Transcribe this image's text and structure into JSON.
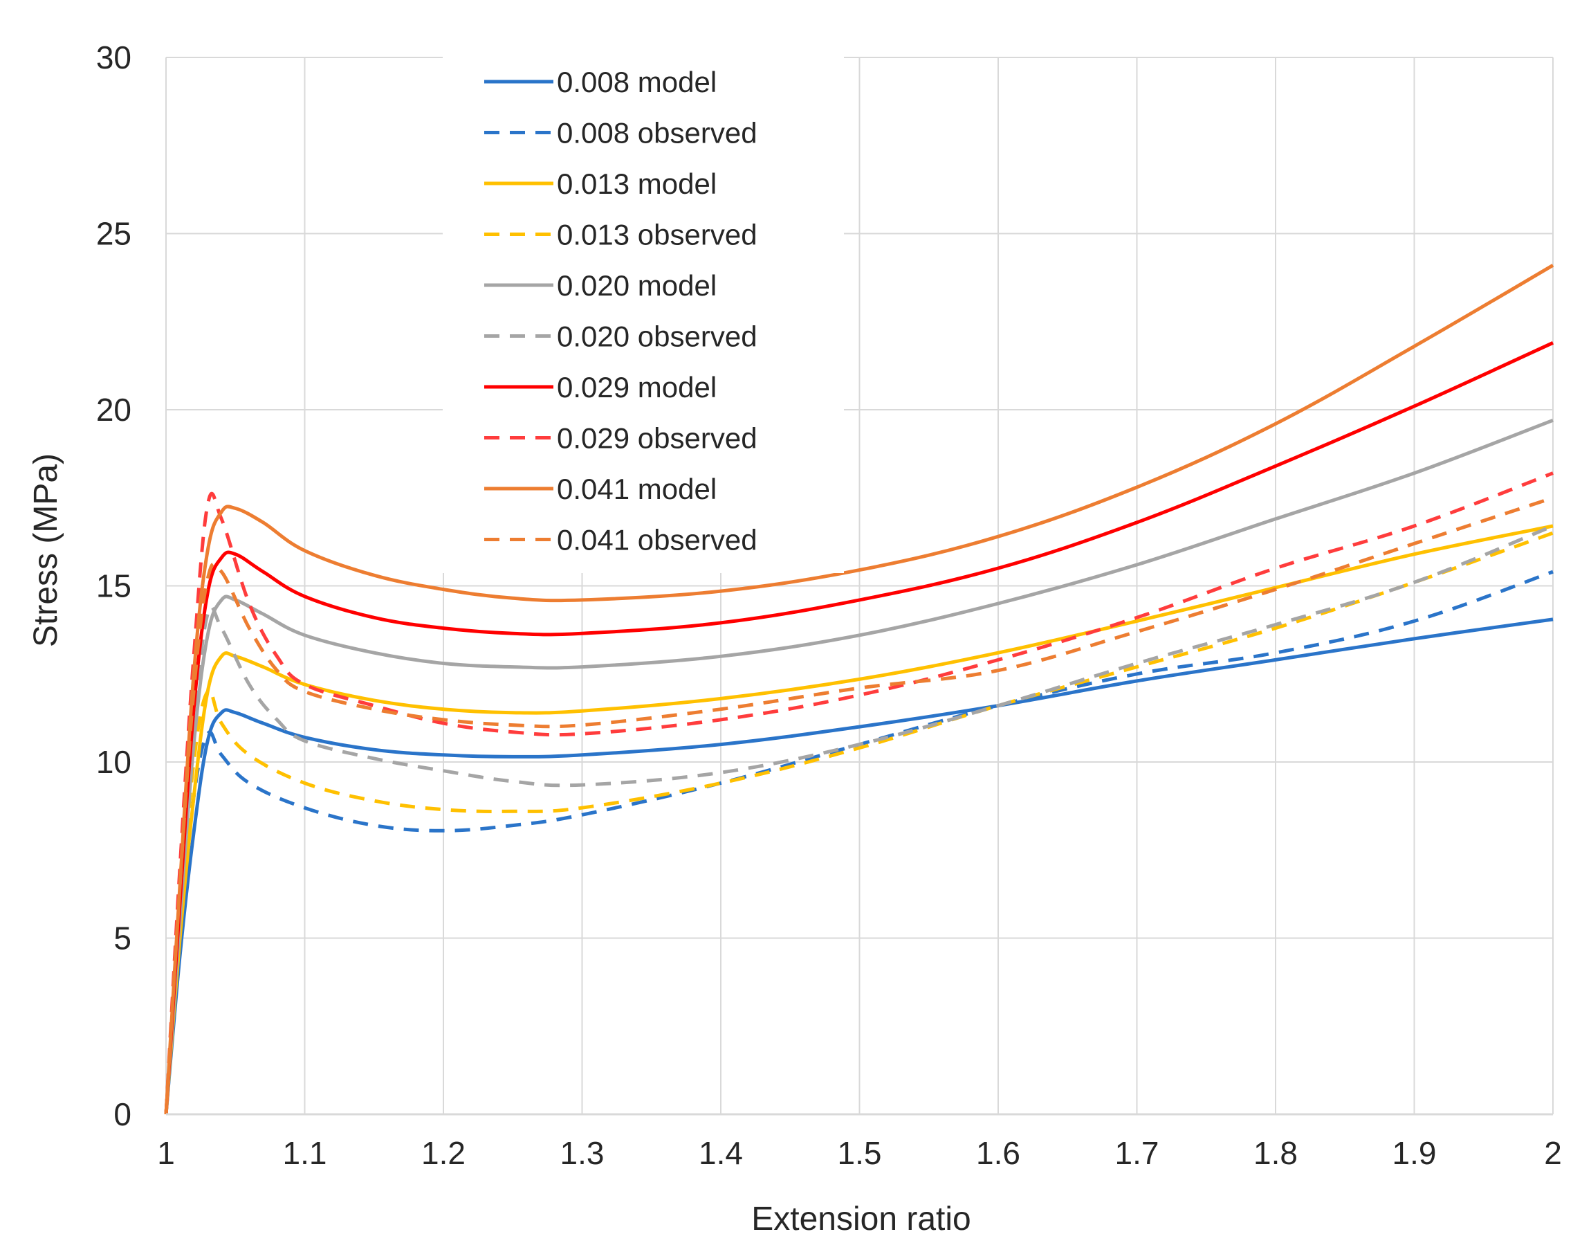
{
  "chart_data": {
    "type": "line",
    "title": "",
    "xlabel": "Extension ratio",
    "ylabel": "Stress (MPa)",
    "xlim": [
      1,
      2
    ],
    "ylim": [
      0,
      30
    ],
    "x_ticks": [
      1,
      1.1,
      1.2,
      1.3,
      1.4,
      1.5,
      1.6,
      1.7,
      1.8,
      1.9,
      2
    ],
    "x_tick_labels": [
      "1",
      "1.1",
      "1.2",
      "1.3",
      "1.4",
      "1.5",
      "1.6",
      "1.7",
      "1.8",
      "1.9",
      "2"
    ],
    "y_ticks": [
      0,
      5,
      10,
      15,
      20,
      25,
      30
    ],
    "y_tick_labels": [
      "0",
      "5",
      "10",
      "15",
      "20",
      "25",
      "30"
    ],
    "grid": true,
    "legend_position": "top-center",
    "series": [
      {
        "name": "0.008 model",
        "color": "#2a74c9",
        "dash": "solid",
        "points": [
          [
            1,
            0
          ],
          [
            1.01,
            4.5
          ],
          [
            1.02,
            8
          ],
          [
            1.03,
            10.6
          ],
          [
            1.04,
            11.4
          ],
          [
            1.05,
            11.4
          ],
          [
            1.07,
            11.1
          ],
          [
            1.1,
            10.7
          ],
          [
            1.15,
            10.35
          ],
          [
            1.2,
            10.2
          ],
          [
            1.25,
            10.15
          ],
          [
            1.3,
            10.2
          ],
          [
            1.4,
            10.5
          ],
          [
            1.5,
            11
          ],
          [
            1.6,
            11.6
          ],
          [
            1.7,
            12.3
          ],
          [
            1.8,
            12.9
          ],
          [
            1.9,
            13.5
          ],
          [
            2,
            14.05
          ]
        ]
      },
      {
        "name": "0.008 observed",
        "color": "#2a74c9",
        "dash": "dashed",
        "points": [
          [
            1,
            0
          ],
          [
            1.01,
            5
          ],
          [
            1.02,
            9
          ],
          [
            1.03,
            10.8
          ],
          [
            1.04,
            10.2
          ],
          [
            1.06,
            9.4
          ],
          [
            1.1,
            8.7
          ],
          [
            1.15,
            8.2
          ],
          [
            1.2,
            8.05
          ],
          [
            1.25,
            8.2
          ],
          [
            1.3,
            8.5
          ],
          [
            1.4,
            9.4
          ],
          [
            1.5,
            10.5
          ],
          [
            1.6,
            11.6
          ],
          [
            1.7,
            12.5
          ],
          [
            1.8,
            13.1
          ],
          [
            1.9,
            14
          ],
          [
            2,
            15.4
          ]
        ]
      },
      {
        "name": "0.013 model",
        "color": "#ffc000",
        "dash": "solid",
        "points": [
          [
            1,
            0
          ],
          [
            1.01,
            5
          ],
          [
            1.02,
            9
          ],
          [
            1.03,
            12
          ],
          [
            1.04,
            13
          ],
          [
            1.05,
            13
          ],
          [
            1.07,
            12.7
          ],
          [
            1.1,
            12.2
          ],
          [
            1.15,
            11.75
          ],
          [
            1.2,
            11.5
          ],
          [
            1.25,
            11.4
          ],
          [
            1.3,
            11.45
          ],
          [
            1.4,
            11.8
          ],
          [
            1.5,
            12.35
          ],
          [
            1.6,
            13.1
          ],
          [
            1.7,
            14
          ],
          [
            1.8,
            14.95
          ],
          [
            1.9,
            15.9
          ],
          [
            2,
            16.7
          ]
        ]
      },
      {
        "name": "0.013 observed",
        "color": "#ffc000",
        "dash": "dashed",
        "points": [
          [
            1,
            0
          ],
          [
            1.01,
            5.5
          ],
          [
            1.02,
            10
          ],
          [
            1.03,
            12
          ],
          [
            1.04,
            11.1
          ],
          [
            1.06,
            10.2
          ],
          [
            1.1,
            9.4
          ],
          [
            1.15,
            8.9
          ],
          [
            1.2,
            8.65
          ],
          [
            1.25,
            8.6
          ],
          [
            1.3,
            8.7
          ],
          [
            1.4,
            9.4
          ],
          [
            1.5,
            10.4
          ],
          [
            1.6,
            11.6
          ],
          [
            1.7,
            12.7
          ],
          [
            1.8,
            13.8
          ],
          [
            1.9,
            15.1
          ],
          [
            2,
            16.5
          ]
        ]
      },
      {
        "name": "0.020 model",
        "color": "#a5a5a5",
        "dash": "solid",
        "points": [
          [
            1,
            0
          ],
          [
            1.01,
            5.5
          ],
          [
            1.02,
            10.5
          ],
          [
            1.03,
            13.6
          ],
          [
            1.04,
            14.6
          ],
          [
            1.05,
            14.6
          ],
          [
            1.07,
            14.2
          ],
          [
            1.1,
            13.6
          ],
          [
            1.15,
            13.1
          ],
          [
            1.2,
            12.8
          ],
          [
            1.25,
            12.7
          ],
          [
            1.3,
            12.7
          ],
          [
            1.4,
            13
          ],
          [
            1.5,
            13.6
          ],
          [
            1.6,
            14.5
          ],
          [
            1.7,
            15.6
          ],
          [
            1.8,
            16.9
          ],
          [
            1.9,
            18.2
          ],
          [
            2,
            19.7
          ]
        ]
      },
      {
        "name": "0.020 observed",
        "color": "#a5a5a5",
        "dash": "dashed",
        "points": [
          [
            1,
            0
          ],
          [
            1.01,
            6
          ],
          [
            1.02,
            11
          ],
          [
            1.03,
            14.2
          ],
          [
            1.04,
            13.8
          ],
          [
            1.06,
            12.2
          ],
          [
            1.08,
            11.2
          ],
          [
            1.1,
            10.6
          ],
          [
            1.15,
            10.1
          ],
          [
            1.2,
            9.75
          ],
          [
            1.25,
            9.45
          ],
          [
            1.3,
            9.35
          ],
          [
            1.4,
            9.7
          ],
          [
            1.5,
            10.5
          ],
          [
            1.6,
            11.6
          ],
          [
            1.7,
            12.8
          ],
          [
            1.8,
            13.9
          ],
          [
            1.9,
            15.1
          ],
          [
            2,
            16.7
          ]
        ]
      },
      {
        "name": "0.029 model",
        "color": "#ff0000",
        "dash": "solid",
        "points": [
          [
            1,
            0
          ],
          [
            1.01,
            6
          ],
          [
            1.02,
            11.5
          ],
          [
            1.03,
            14.8
          ],
          [
            1.04,
            15.8
          ],
          [
            1.05,
            15.9
          ],
          [
            1.07,
            15.4
          ],
          [
            1.1,
            14.7
          ],
          [
            1.15,
            14.1
          ],
          [
            1.2,
            13.8
          ],
          [
            1.25,
            13.65
          ],
          [
            1.3,
            13.65
          ],
          [
            1.4,
            13.95
          ],
          [
            1.5,
            14.6
          ],
          [
            1.6,
            15.5
          ],
          [
            1.7,
            16.8
          ],
          [
            1.8,
            18.4
          ],
          [
            1.9,
            20.1
          ],
          [
            2,
            21.9
          ]
        ]
      },
      {
        "name": "0.029 observed",
        "color": "#ff3c3c",
        "dash": "dashed",
        "points": [
          [
            1,
            0
          ],
          [
            1.01,
            7
          ],
          [
            1.02,
            13
          ],
          [
            1.03,
            17.3
          ],
          [
            1.04,
            16.9
          ],
          [
            1.06,
            14.5
          ],
          [
            1.08,
            13
          ],
          [
            1.1,
            12.2
          ],
          [
            1.15,
            11.6
          ],
          [
            1.2,
            11.1
          ],
          [
            1.25,
            10.85
          ],
          [
            1.3,
            10.8
          ],
          [
            1.4,
            11.2
          ],
          [
            1.5,
            11.9
          ],
          [
            1.6,
            12.9
          ],
          [
            1.7,
            14.1
          ],
          [
            1.8,
            15.5
          ],
          [
            1.9,
            16.7
          ],
          [
            2,
            18.2
          ]
        ]
      },
      {
        "name": "0.041 model",
        "color": "#ed7d31",
        "dash": "solid",
        "points": [
          [
            1,
            0
          ],
          [
            1.01,
            6.5
          ],
          [
            1.02,
            12.5
          ],
          [
            1.03,
            16
          ],
          [
            1.04,
            17.1
          ],
          [
            1.05,
            17.2
          ],
          [
            1.07,
            16.8
          ],
          [
            1.1,
            16
          ],
          [
            1.15,
            15.3
          ],
          [
            1.2,
            14.9
          ],
          [
            1.25,
            14.65
          ],
          [
            1.3,
            14.6
          ],
          [
            1.4,
            14.85
          ],
          [
            1.5,
            15.45
          ],
          [
            1.6,
            16.4
          ],
          [
            1.7,
            17.8
          ],
          [
            1.8,
            19.6
          ],
          [
            1.9,
            21.8
          ],
          [
            2,
            24.1
          ]
        ]
      },
      {
        "name": "0.041 observed",
        "color": "#ed7d31",
        "dash": "dashed",
        "points": [
          [
            1,
            0
          ],
          [
            1.01,
            6.5
          ],
          [
            1.02,
            12
          ],
          [
            1.03,
            15.2
          ],
          [
            1.04,
            15.4
          ],
          [
            1.06,
            13.8
          ],
          [
            1.08,
            12.6
          ],
          [
            1.1,
            12
          ],
          [
            1.15,
            11.5
          ],
          [
            1.2,
            11.2
          ],
          [
            1.25,
            11.05
          ],
          [
            1.3,
            11.05
          ],
          [
            1.4,
            11.5
          ],
          [
            1.5,
            12.1
          ],
          [
            1.6,
            12.6
          ],
          [
            1.7,
            13.7
          ],
          [
            1.8,
            14.9
          ],
          [
            1.9,
            16.2
          ],
          [
            2,
            17.5
          ]
        ]
      }
    ]
  }
}
